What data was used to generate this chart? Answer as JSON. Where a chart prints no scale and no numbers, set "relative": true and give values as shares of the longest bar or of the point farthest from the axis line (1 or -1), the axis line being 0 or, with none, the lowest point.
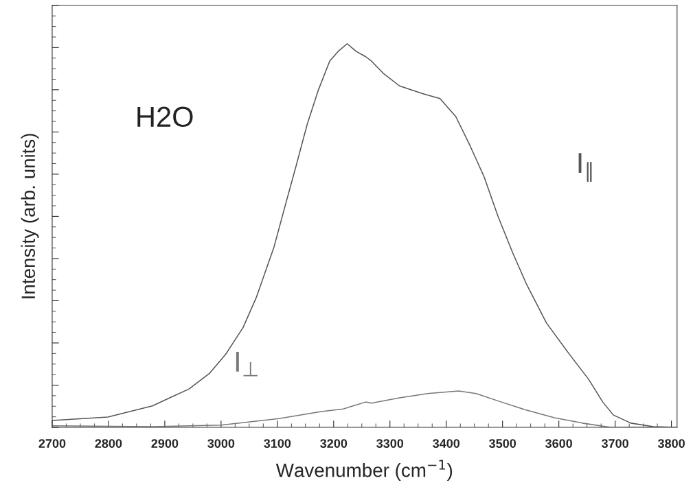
{
  "chart_data": {
    "type": "line",
    "relative": true,
    "xlabel": "Wavenumber (cm$^{−1}$)",
    "ylabel": "Intensity (arb. units)",
    "annotations": [
      "H2O"
    ],
    "xlim": [
      2700,
      3810
    ],
    "xticks": [
      2700,
      2800,
      2900,
      3000,
      3100,
      3200,
      3300,
      3400,
      3500,
      3600,
      3700,
      3800
    ],
    "tick_labels": "x",
    "grid": false,
    "legend": false,
    "marker": "none",
    "line_style": "solid",
    "series": [
      {
        "name": "I$_{∥}$",
        "color": "#555555",
        "x": [
          2700,
          2799,
          2878,
          2943,
          2979,
          3008,
          3039,
          3063,
          3094,
          3118,
          3133,
          3153,
          3173,
          3193,
          3208,
          3224,
          3240,
          3257,
          3267,
          3288,
          3317,
          3358,
          3389,
          3417,
          3442,
          3467,
          3492,
          3518,
          3542,
          3578,
          3618,
          3653,
          3678,
          3697,
          3728,
          3768,
          3808
        ],
        "values": [
          0.018,
          0.027,
          0.056,
          0.1,
          0.14,
          0.19,
          0.26,
          0.34,
          0.47,
          0.6,
          0.68,
          0.79,
          0.88,
          0.955,
          0.98,
          1.0,
          0.98,
          0.966,
          0.955,
          0.923,
          0.89,
          0.87,
          0.857,
          0.81,
          0.735,
          0.654,
          0.55,
          0.455,
          0.375,
          0.272,
          0.192,
          0.125,
          0.066,
          0.032,
          0.011,
          0.002,
          0.0
        ]
      },
      {
        "name": "I$_{⊥}$",
        "color": "#777777",
        "x": [
          2700,
          2878,
          3000,
          3103,
          3178,
          3217,
          3257,
          3267,
          3317,
          3367,
          3422,
          3453,
          3498,
          3542,
          3592,
          3642,
          3692,
          3808
        ],
        "values": [
          0.004,
          0.002,
          0.006,
          0.023,
          0.041,
          0.048,
          0.066,
          0.063,
          0.077,
          0.088,
          0.095,
          0.088,
          0.066,
          0.045,
          0.025,
          0.011,
          0.0,
          0.0
        ]
      }
    ]
  }
}
